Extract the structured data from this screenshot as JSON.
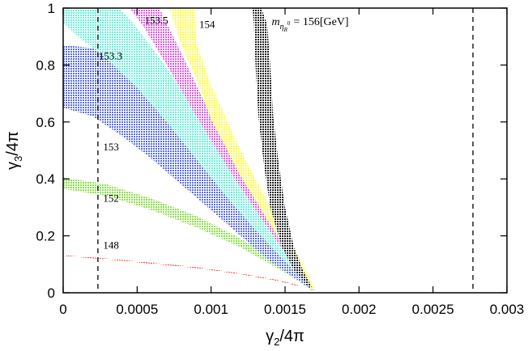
{
  "chart_data": {
    "type": "scatter",
    "title": "",
    "xlabel": "γ 2/4π",
    "ylabel": "γ 3/4π",
    "xlim": [
      0,
      0.003
    ],
    "ylim": [
      0,
      1
    ],
    "x_ticks": [
      "0",
      "0.0005",
      "0.001",
      "0.0015",
      "0.002",
      "0.0025",
      "0.003"
    ],
    "y_ticks": [
      "0",
      "0.2",
      "0.4",
      "0.6",
      "0.8",
      "1"
    ],
    "grid": false,
    "legend": "none",
    "vertical_dashed_lines": [
      0.000235,
      0.00277
    ],
    "series": [
      {
        "label": "148",
        "color": "#ff3a2a",
        "label_x": 0.00027,
        "label_y": 0.155,
        "upper": [
          [
            2e-05,
            0.131
          ],
          [
            0.0003,
            0.12
          ],
          [
            0.0006,
            0.105
          ],
          [
            0.0009,
            0.09
          ],
          [
            0.0012,
            0.068
          ],
          [
            0.00145,
            0.045
          ],
          [
            0.0016,
            0.025
          ]
        ],
        "lower": [
          [
            2e-05,
            0.128
          ],
          [
            0.0003,
            0.117
          ],
          [
            0.0006,
            0.102
          ],
          [
            0.0009,
            0.087
          ],
          [
            0.0012,
            0.065
          ],
          [
            0.00145,
            0.042
          ],
          [
            0.0016,
            0.022
          ]
        ]
      },
      {
        "label": "152",
        "color": "#8be04a",
        "label_x": 0.00027,
        "label_y": 0.32,
        "upper": [
          [
            0,
            0.405
          ],
          [
            0.0003,
            0.38
          ],
          [
            0.0006,
            0.33
          ],
          [
            0.0009,
            0.27
          ],
          [
            0.0012,
            0.19
          ],
          [
            0.0014,
            0.13
          ],
          [
            0.00155,
            0.08
          ],
          [
            0.00165,
            0.04
          ],
          [
            0.0017,
            0.01
          ]
        ],
        "lower": [
          [
            0,
            0.365
          ],
          [
            0.0003,
            0.34
          ],
          [
            0.0006,
            0.29
          ],
          [
            0.0009,
            0.23
          ],
          [
            0.0012,
            0.16
          ],
          [
            0.0014,
            0.1
          ],
          [
            0.00155,
            0.055
          ],
          [
            0.00165,
            0.02
          ],
          [
            0.00168,
            0.005
          ]
        ]
      },
      {
        "label": "153",
        "color": "#5a6fdc",
        "label_x": 0.00027,
        "label_y": 0.5,
        "upper": [
          [
            0,
            0.87
          ],
          [
            0.0002,
            0.86
          ],
          [
            0.0004,
            0.8
          ],
          [
            0.0006,
            0.69
          ],
          [
            0.0008,
            0.56
          ],
          [
            0.001,
            0.43
          ],
          [
            0.0012,
            0.3
          ],
          [
            0.0014,
            0.18
          ],
          [
            0.0016,
            0.08
          ],
          [
            0.0017,
            0.02
          ]
        ],
        "lower": [
          [
            0,
            0.65
          ],
          [
            0.0002,
            0.62
          ],
          [
            0.0004,
            0.55
          ],
          [
            0.0006,
            0.47
          ],
          [
            0.0008,
            0.38
          ],
          [
            0.001,
            0.29
          ],
          [
            0.0012,
            0.2
          ],
          [
            0.0014,
            0.11
          ],
          [
            0.0016,
            0.04
          ],
          [
            0.00168,
            0.01
          ]
        ]
      },
      {
        "label": "153.3",
        "color": "#66f0d8",
        "label_x": 0.00024,
        "label_y": 0.82,
        "upper": [
          [
            0,
            1
          ],
          [
            0.00038,
            1
          ],
          [
            0.0005,
            0.93
          ],
          [
            0.0007,
            0.79
          ],
          [
            0.0009,
            0.63
          ],
          [
            0.0011,
            0.47
          ],
          [
            0.0013,
            0.32
          ],
          [
            0.0015,
            0.17
          ],
          [
            0.0016,
            0.09
          ],
          [
            0.0017,
            0.02
          ]
        ],
        "lower": [
          [
            0,
            0.95
          ],
          [
            0.0001,
            0.9
          ],
          [
            0.0002,
            0.86
          ],
          [
            0.0003,
            0.82
          ],
          [
            0.0005,
            0.72
          ],
          [
            0.0007,
            0.6
          ],
          [
            0.0009,
            0.47
          ],
          [
            0.0011,
            0.34
          ],
          [
            0.0013,
            0.22
          ],
          [
            0.0015,
            0.11
          ],
          [
            0.0016,
            0.06
          ],
          [
            0.00168,
            0.01
          ]
        ]
      },
      {
        "label": "153.5",
        "color": "#e05ae0",
        "label_x": 0.00055,
        "label_y": 0.945,
        "upper": [
          [
            0.00055,
            1
          ],
          [
            0.00065,
            1
          ],
          [
            0.0008,
            0.84
          ],
          [
            0.001,
            0.62
          ],
          [
            0.0012,
            0.43
          ],
          [
            0.0014,
            0.26
          ],
          [
            0.0016,
            0.1
          ],
          [
            0.0017,
            0.02
          ]
        ],
        "lower": [
          [
            0.00045,
            1
          ],
          [
            0.00055,
            0.93
          ],
          [
            0.0007,
            0.8
          ],
          [
            0.0009,
            0.62
          ],
          [
            0.0011,
            0.45
          ],
          [
            0.0013,
            0.29
          ],
          [
            0.0015,
            0.14
          ],
          [
            0.00168,
            0.01
          ]
        ]
      },
      {
        "label": "154",
        "color": "#ffff38",
        "label_x": 0.00092,
        "label_y": 0.93,
        "upper": [
          [
            0.00082,
            1
          ],
          [
            0.00089,
            1
          ],
          [
            0.0009,
            0.88
          ],
          [
            0.001,
            0.73
          ],
          [
            0.0012,
            0.5
          ],
          [
            0.0014,
            0.3
          ],
          [
            0.0016,
            0.12
          ],
          [
            0.0017,
            0.02
          ]
        ],
        "lower": [
          [
            0.00072,
            1
          ],
          [
            0.0008,
            0.87
          ],
          [
            0.0009,
            0.75
          ],
          [
            0.001,
            0.61
          ],
          [
            0.0012,
            0.41
          ],
          [
            0.0014,
            0.24
          ],
          [
            0.0016,
            0.08
          ],
          [
            0.00168,
            0.01
          ]
        ]
      },
      {
        "label": "m_{η_R^0} = 156[GeV]",
        "color": "#222222",
        "label_x": 0.00141,
        "label_y": 0.94,
        "upper": [
          [
            0.00134,
            1
          ],
          [
            0.00138,
            0.94
          ],
          [
            0.0014,
            0.8
          ],
          [
            0.00142,
            0.62
          ],
          [
            0.00146,
            0.44
          ],
          [
            0.0015,
            0.3
          ],
          [
            0.00156,
            0.16
          ],
          [
            0.00162,
            0.08
          ],
          [
            0.00168,
            0.02
          ]
        ],
        "lower": [
          [
            0.00128,
            1
          ],
          [
            0.00129,
            0.94
          ],
          [
            0.0013,
            0.8
          ],
          [
            0.00132,
            0.62
          ],
          [
            0.00136,
            0.44
          ],
          [
            0.0014,
            0.3
          ],
          [
            0.00148,
            0.16
          ],
          [
            0.00156,
            0.08
          ],
          [
            0.00166,
            0.02
          ]
        ]
      }
    ]
  }
}
